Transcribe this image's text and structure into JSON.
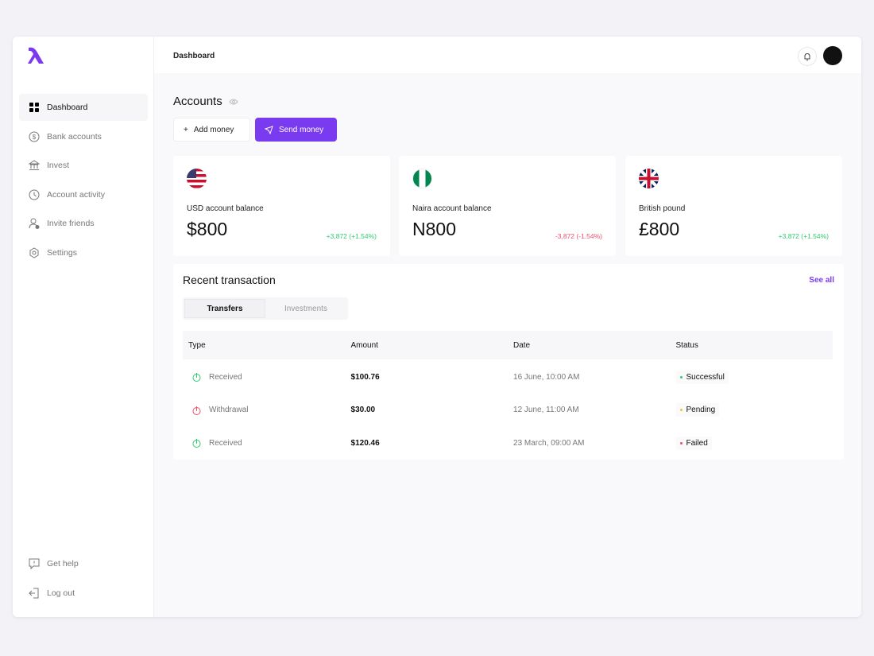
{
  "brand": {
    "color": "#7a3bf0"
  },
  "sidebar": {
    "items": [
      {
        "label": "Dashboard",
        "icon": "grid-icon",
        "active": true
      },
      {
        "label": "Bank accounts",
        "icon": "dollar-icon"
      },
      {
        "label": "Invest",
        "icon": "bank-icon"
      },
      {
        "label": "Account activity",
        "icon": "clock-icon"
      },
      {
        "label": "Invite friends",
        "icon": "user-plus-icon"
      },
      {
        "label": "Settings",
        "icon": "gear-icon"
      }
    ],
    "bottom": [
      {
        "label": "Get help",
        "icon": "help-icon"
      },
      {
        "label": "Log out",
        "icon": "logout-icon"
      }
    ]
  },
  "header": {
    "breadcrumb": "Dashboard"
  },
  "accounts": {
    "title": "Accounts",
    "add_label": "Add money",
    "send_label": "Send money",
    "cards": [
      {
        "flag": "us",
        "label": "USD account balance",
        "value": "$800",
        "change": "+3,872 (+1.54%)",
        "change_color": "#2ecc71"
      },
      {
        "flag": "ng",
        "label": "Naira account balance",
        "value": "N800",
        "change": "-3,872 (-1.54%)",
        "change_color": "#ef4f6b"
      },
      {
        "flag": "gb",
        "label": "British pound",
        "value": "£800",
        "change": "+3,872 (+1.54%)",
        "change_color": "#2ecc71"
      }
    ]
  },
  "transactions": {
    "title": "Recent transaction",
    "see_all": "See all",
    "tabs": [
      "Transfers",
      "Investments"
    ],
    "columns": [
      "Type",
      "Amount",
      "Date",
      "Status"
    ],
    "rows": [
      {
        "type": "Received",
        "amount": "$100.76",
        "date": "16 June, 10:00 AM",
        "status": "Successful",
        "status_color": "#2ecc71",
        "icon_color": "#2ecc71"
      },
      {
        "type": "Withdrawal",
        "amount": "$30.00",
        "date": "12 June, 11:00 AM",
        "status": "Pending",
        "status_color": "#e8c43a",
        "icon_color": "#ef4f6b"
      },
      {
        "type": "Received",
        "amount": "$120.46",
        "date": "23 March, 09:00 AM",
        "status": "Failed",
        "status_color": "#ef4f6b",
        "icon_color": "#2ecc71"
      }
    ]
  }
}
